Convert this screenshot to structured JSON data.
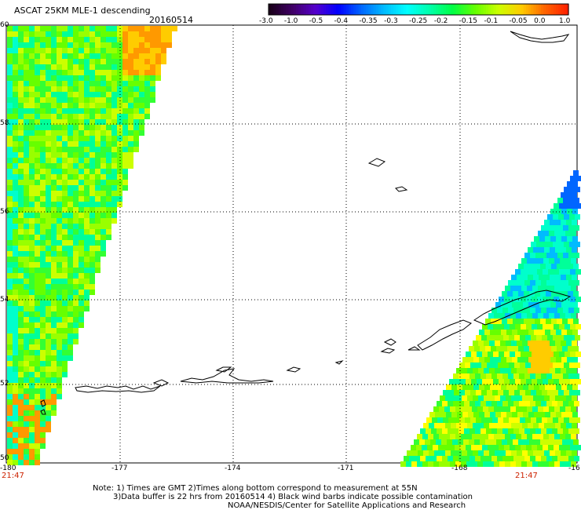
{
  "title": "ASCAT 25KM MLE-1 descending",
  "date": "20160514",
  "colorbar": {
    "labels": [
      "-3.0",
      "-1.0",
      "-0.5",
      "-0.4",
      "-0.35",
      "-0.3",
      "-0.25",
      "-0.2",
      "-0.15",
      "-0.1",
      "-0.05",
      "0.0",
      "1.0"
    ],
    "colors": [
      "#1a001a",
      "#400066",
      "#5500cc",
      "#0000ff",
      "#0066ff",
      "#00bbff",
      "#00ffff",
      "#00ffaa",
      "#00ff44",
      "#66ff00",
      "#ccff00",
      "#ffcc00",
      "#ff6600",
      "#ff2200"
    ]
  },
  "lat_labels": [
    "60",
    "58",
    "56",
    "54",
    "52",
    "50"
  ],
  "lon_labels": [
    "-180",
    "-177",
    "-174",
    "-171",
    "-168",
    "-16"
  ],
  "time_left": "21:47",
  "time_right": "21:47",
  "notes": {
    "line1": "Note: 1) Times are GMT 2)Times along bottom correspond to measurement at 55N",
    "line2": "3)Data buffer is 22 hrs from 20160514 4) Black wind barbs indicate possible contamination",
    "line3": "NOAA/NESDIS/Center for Satellite Applications and Research"
  }
}
